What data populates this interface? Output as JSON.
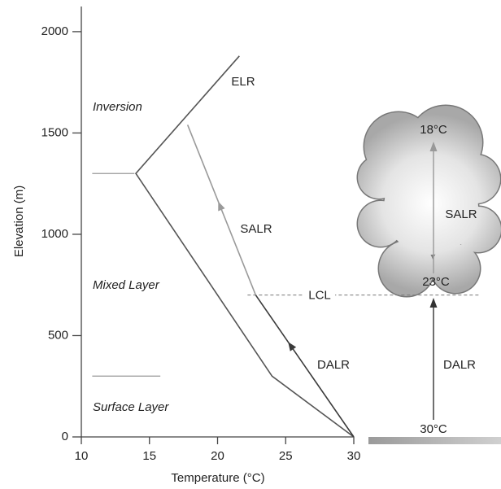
{
  "chart_data": {
    "type": "line",
    "xlabel": "Temperature (°C)",
    "ylabel": "Elevation (m)",
    "xlim": [
      10,
      30
    ],
    "ylim": [
      0,
      2100
    ],
    "xticks": [
      10,
      15,
      20,
      25,
      30
    ],
    "yticks": [
      0,
      500,
      1000,
      1500,
      2000
    ],
    "series": [
      {
        "name": "ELR",
        "color": "#555555",
        "x": [
          30,
          24,
          14,
          21.6
        ],
        "values": [
          0,
          300,
          1300,
          1880
        ]
      },
      {
        "name": "DALR",
        "color": "#3a3a3a",
        "x": [
          30,
          22.8
        ],
        "values": [
          0,
          700
        ]
      },
      {
        "name": "SALR",
        "color": "#9a9a9a",
        "x": [
          22.8,
          17.8
        ],
        "values": [
          700,
          1540
        ]
      }
    ],
    "layer_boundaries": [
      {
        "x": [
          10.8,
          13.9
        ],
        "value": 1300
      },
      {
        "x": [
          10.8,
          15.8
        ],
        "value": 300
      }
    ],
    "lcl": {
      "label": "LCL",
      "value": 700,
      "x": 22.2
    },
    "layers": [
      "Inversion",
      "Mixed Layer",
      "Surface Layer"
    ],
    "parcel": {
      "top_label": "18°C",
      "lcl_label": "23°C",
      "surface_label": "30°C",
      "upper_label": "SALR",
      "lower_label": "DALR"
    }
  }
}
